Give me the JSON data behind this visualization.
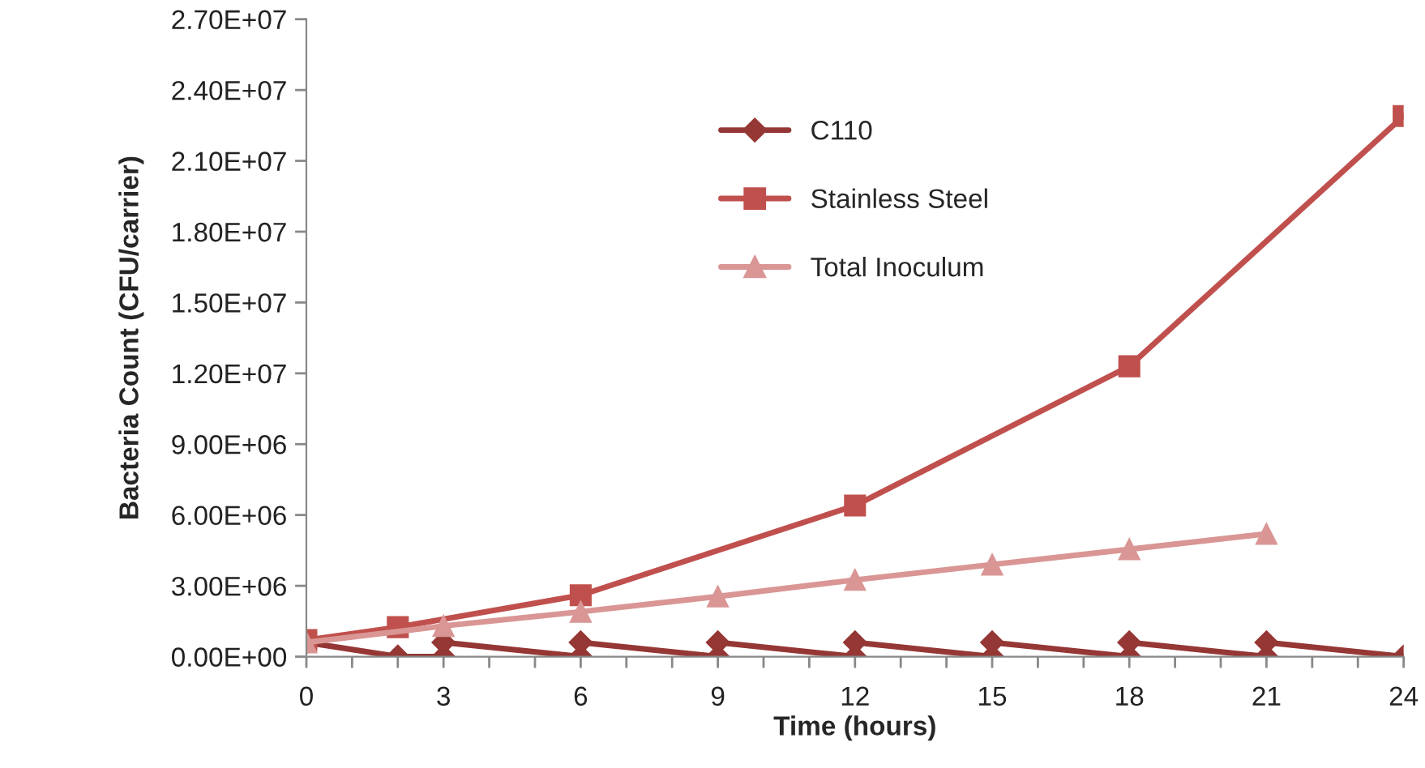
{
  "chart_data": {
    "type": "line",
    "xlabel": "Time (hours)",
    "ylabel": "Bacteria Count (CFU/carrier)",
    "series": [
      {
        "name": "C110",
        "color": "#953735",
        "marker": "diamond",
        "x": [
          0,
          2,
          3,
          3,
          6,
          6,
          9,
          9,
          12,
          12,
          15,
          15,
          18,
          18,
          21,
          21,
          24
        ],
        "values": [
          600000,
          0,
          0,
          600000,
          0,
          600000,
          0,
          600000,
          0,
          600000,
          0,
          600000,
          0,
          600000,
          0,
          600000,
          0
        ]
      },
      {
        "name": "Stainless Steel",
        "color": "#c0504d",
        "marker": "square",
        "x": [
          0,
          2,
          6,
          12,
          18,
          24
        ],
        "values": [
          700000,
          1250000,
          2600000,
          6400000,
          12300000,
          22900000
        ]
      },
      {
        "name": "Total Inoculum",
        "color": "#d99694",
        "marker": "triangle",
        "x": [
          0,
          3,
          6,
          9,
          12,
          15,
          18,
          21
        ],
        "values": [
          600000,
          1300000,
          1900000,
          2550000,
          3250000,
          3900000,
          4550000,
          5200000
        ]
      }
    ],
    "xlim": [
      0,
      24
    ],
    "xticks": [
      0,
      {
        "value": 1,
        "label": null
      },
      {
        "value": 2,
        "label": null
      },
      3,
      {
        "value": 4,
        "label": null
      },
      {
        "value": 5,
        "label": null
      },
      6,
      {
        "value": 7,
        "label": null
      },
      {
        "value": 8,
        "label": null
      },
      9,
      {
        "value": 10,
        "label": null
      },
      {
        "value": 11,
        "label": null
      },
      12,
      {
        "value": 13,
        "label": null
      },
      {
        "value": 14,
        "label": null
      },
      15,
      {
        "value": 16,
        "label": null
      },
      {
        "value": 17,
        "label": null
      },
      18,
      {
        "value": 19,
        "label": null
      },
      {
        "value": 20,
        "label": null
      },
      21,
      {
        "value": 22,
        "label": null
      },
      {
        "value": 23,
        "label": null
      },
      24
    ],
    "ylim": [
      0,
      27000000
    ],
    "yticks": [
      {
        "value": 0,
        "label": "0.00E+00"
      },
      {
        "value": 3000000,
        "label": "3.00E+06"
      },
      {
        "value": 6000000,
        "label": "6.00E+06"
      },
      {
        "value": 9000000,
        "label": "9.00E+06"
      },
      {
        "value": 12000000,
        "label": "1.20E+07"
      },
      {
        "value": 15000000,
        "label": "1.50E+07"
      },
      {
        "value": 18000000,
        "label": "1.80E+07"
      },
      {
        "value": 21000000,
        "label": "2.10E+07"
      },
      {
        "value": 24000000,
        "label": "2.40E+07"
      },
      {
        "value": 27000000,
        "label": "2.70E+07"
      }
    ],
    "grid": false,
    "legend": "top",
    "line_style": "solid"
  }
}
